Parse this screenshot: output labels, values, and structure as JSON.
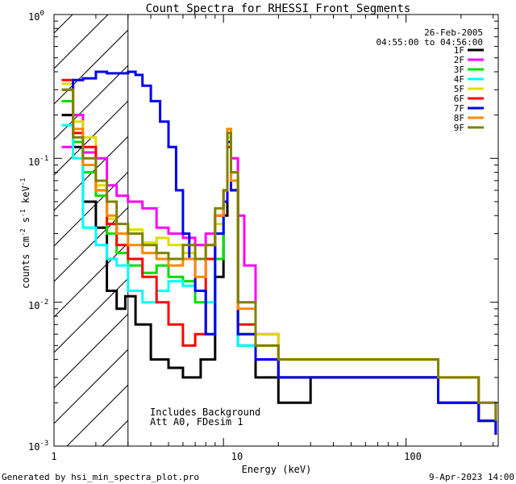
{
  "chart_data": {
    "type": "line",
    "title": "Count Spectra for RHESSI Front Segments",
    "xlabel": "Energy (keV)",
    "ylabel_main": "counts cm",
    "ylabel_exp1": "-2",
    "ylabel_mid": " s",
    "ylabel_exp2": "-1",
    "ylabel_end": " keV",
    "ylabel_exp3": "-1",
    "xscale": "log",
    "yscale": "log",
    "xlim": [
      1.18,
      320
    ],
    "ylim": [
      0.001,
      1.0
    ],
    "x_ticks": [
      {
        "value": 1,
        "label": "1"
      },
      {
        "value": 10,
        "label": "10"
      },
      {
        "value": 100,
        "label": "100"
      }
    ],
    "y_ticks": [
      {
        "value": 1,
        "base": "10",
        "exp": "0"
      },
      {
        "value": 0.1,
        "base": "10",
        "exp": "-1"
      },
      {
        "value": 0.01,
        "base": "10",
        "exp": "-2"
      },
      {
        "value": 0.001,
        "base": "10",
        "exp": "-3"
      }
    ],
    "date": "26-Feb-2005",
    "time_range": "04:55:00 to 04:56:00",
    "note_line1": "Includes Background",
    "note_line2": "Att A0, FDesim 1",
    "hatch_region_keV": [
      1.18,
      3.0
    ],
    "legend_position": "top-right",
    "series": [
      {
        "name": "1F",
        "color": "#000000",
        "points": [
          [
            1.3,
            0.2
          ],
          [
            1.5,
            0.12
          ],
          [
            1.7,
            0.05
          ],
          [
            2.0,
            0.033
          ],
          [
            2.3,
            0.012
          ],
          [
            2.6,
            0.009
          ],
          [
            2.9,
            0.011
          ],
          [
            3.3,
            0.007
          ],
          [
            4,
            0.004
          ],
          [
            5,
            0.0035
          ],
          [
            6,
            0.003
          ],
          [
            7.5,
            0.004
          ],
          [
            9,
            0.015
          ],
          [
            10,
            0.04
          ],
          [
            10.5,
            0.13
          ],
          [
            11,
            0.06
          ],
          [
            12,
            0.005
          ],
          [
            15,
            0.003
          ],
          [
            20,
            0.002
          ],
          [
            30,
            0.003
          ],
          [
            50,
            0.003
          ],
          [
            80,
            0.003
          ],
          [
            150,
            0.002
          ],
          [
            250,
            0.0015
          ],
          [
            310,
            0.0012
          ]
        ]
      },
      {
        "name": "2F",
        "color": "#ff00ff",
        "points": [
          [
            1.3,
            0.12
          ],
          [
            1.5,
            0.2
          ],
          [
            1.7,
            0.11
          ],
          [
            2.0,
            0.1
          ],
          [
            2.3,
            0.065
          ],
          [
            2.6,
            0.055
          ],
          [
            3.0,
            0.05
          ],
          [
            3.6,
            0.045
          ],
          [
            4.3,
            0.033
          ],
          [
            5,
            0.03
          ],
          [
            6,
            0.028
          ],
          [
            7,
            0.025
          ],
          [
            8,
            0.03
          ],
          [
            9,
            0.04
          ],
          [
            10,
            0.06
          ],
          [
            10.5,
            0.14
          ],
          [
            11,
            0.1
          ],
          [
            12,
            0.04
          ],
          [
            13,
            0.018
          ],
          [
            15,
            0.006
          ],
          [
            20,
            0.003
          ],
          [
            30,
            0.003
          ],
          [
            50,
            0.003
          ],
          [
            80,
            0.003
          ],
          [
            150,
            0.002
          ],
          [
            250,
            0.0015
          ],
          [
            310,
            0.0012
          ]
        ]
      },
      {
        "name": "3F",
        "color": "#00dd00",
        "points": [
          [
            1.3,
            0.25
          ],
          [
            1.5,
            0.13
          ],
          [
            1.7,
            0.08
          ],
          [
            2.0,
            0.055
          ],
          [
            2.3,
            0.03
          ],
          [
            2.6,
            0.022
          ],
          [
            3.0,
            0.018
          ],
          [
            3.6,
            0.016
          ],
          [
            4.3,
            0.018
          ],
          [
            5,
            0.015
          ],
          [
            6,
            0.014
          ],
          [
            7,
            0.01
          ],
          [
            8,
            0.006
          ],
          [
            9,
            0.02
          ],
          [
            10,
            0.05
          ],
          [
            10.5,
            0.15
          ],
          [
            11,
            0.07
          ],
          [
            12,
            0.006
          ],
          [
            15,
            0.004
          ],
          [
            20,
            0.003
          ],
          [
            30,
            0.003
          ],
          [
            50,
            0.003
          ],
          [
            80,
            0.003
          ],
          [
            150,
            0.002
          ],
          [
            250,
            0.0015
          ],
          [
            310,
            0.0012
          ]
        ]
      },
      {
        "name": "4F",
        "color": "#00ffff",
        "points": [
          [
            1.3,
            0.17
          ],
          [
            1.5,
            0.1
          ],
          [
            1.7,
            0.033
          ],
          [
            2.0,
            0.025
          ],
          [
            2.3,
            0.02
          ],
          [
            2.6,
            0.018
          ],
          [
            3.0,
            0.012
          ],
          [
            3.6,
            0.01
          ],
          [
            4.3,
            0.012
          ],
          [
            5,
            0.014
          ],
          [
            6,
            0.013
          ],
          [
            7,
            0.012
          ],
          [
            8,
            0.01
          ],
          [
            9,
            0.03
          ],
          [
            10,
            0.05
          ],
          [
            10.5,
            0.12
          ],
          [
            11,
            0.06
          ],
          [
            12,
            0.005
          ],
          [
            15,
            0.004
          ],
          [
            20,
            0.003
          ],
          [
            30,
            0.003
          ],
          [
            50,
            0.003
          ],
          [
            80,
            0.003
          ],
          [
            150,
            0.002
          ],
          [
            250,
            0.0015
          ],
          [
            310,
            0.0012
          ]
        ]
      },
      {
        "name": "5F",
        "color": "#dddd00",
        "points": [
          [
            1.3,
            0.33
          ],
          [
            1.5,
            0.18
          ],
          [
            1.7,
            0.14
          ],
          [
            2.0,
            0.065
          ],
          [
            2.3,
            0.038
          ],
          [
            2.6,
            0.03
          ],
          [
            3.0,
            0.032
          ],
          [
            3.6,
            0.026
          ],
          [
            4.3,
            0.028
          ],
          [
            5,
            0.025
          ],
          [
            6,
            0.022
          ],
          [
            7,
            0.02
          ],
          [
            8,
            0.025
          ],
          [
            9,
            0.035
          ],
          [
            10,
            0.05
          ],
          [
            10.5,
            0.14
          ],
          [
            11,
            0.08
          ],
          [
            12,
            0.01
          ],
          [
            15,
            0.006
          ],
          [
            20,
            0.004
          ],
          [
            30,
            0.004
          ],
          [
            50,
            0.004
          ],
          [
            80,
            0.004
          ],
          [
            150,
            0.003
          ],
          [
            250,
            0.002
          ],
          [
            310,
            0.0015
          ]
        ]
      },
      {
        "name": "6F",
        "color": "#ff0000",
        "points": [
          [
            1.3,
            0.35
          ],
          [
            1.5,
            0.15
          ],
          [
            1.7,
            0.12
          ],
          [
            2.0,
            0.06
          ],
          [
            2.3,
            0.035
          ],
          [
            2.6,
            0.025
          ],
          [
            3.0,
            0.02
          ],
          [
            3.6,
            0.015
          ],
          [
            4.3,
            0.01
          ],
          [
            5,
            0.007
          ],
          [
            6,
            0.005
          ],
          [
            7,
            0.006
          ],
          [
            8,
            0.02
          ],
          [
            9,
            0.04
          ],
          [
            10,
            0.05
          ],
          [
            10.5,
            0.12
          ],
          [
            11,
            0.06
          ],
          [
            12,
            0.007
          ],
          [
            15,
            0.004
          ],
          [
            20,
            0.003
          ],
          [
            30,
            0.003
          ],
          [
            50,
            0.003
          ],
          [
            80,
            0.003
          ],
          [
            150,
            0.002
          ],
          [
            250,
            0.0015
          ],
          [
            310,
            0.0012
          ]
        ]
      },
      {
        "name": "7F",
        "color": "#0000ee",
        "points": [
          [
            1.3,
            0.3
          ],
          [
            1.5,
            0.35
          ],
          [
            1.7,
            0.36
          ],
          [
            2.0,
            0.4
          ],
          [
            2.3,
            0.39
          ],
          [
            2.6,
            0.39
          ],
          [
            3.0,
            0.4
          ],
          [
            3.3,
            0.38
          ],
          [
            3.6,
            0.32
          ],
          [
            4.0,
            0.25
          ],
          [
            4.5,
            0.18
          ],
          [
            5,
            0.12
          ],
          [
            5.5,
            0.06
          ],
          [
            6,
            0.03
          ],
          [
            6.5,
            0.02
          ],
          [
            7,
            0.012
          ],
          [
            8,
            0.006
          ],
          [
            9,
            0.03
          ],
          [
            10,
            0.05
          ],
          [
            10.5,
            0.13
          ],
          [
            11,
            0.06
          ],
          [
            12,
            0.006
          ],
          [
            15,
            0.004
          ],
          [
            20,
            0.003
          ],
          [
            30,
            0.003
          ],
          [
            50,
            0.003
          ],
          [
            80,
            0.003
          ],
          [
            150,
            0.002
          ],
          [
            250,
            0.0015
          ],
          [
            310,
            0.0012
          ]
        ]
      },
      {
        "name": "8F",
        "color": "#ff8800",
        "points": [
          [
            1.3,
            0.3
          ],
          [
            1.5,
            0.16
          ],
          [
            1.7,
            0.09
          ],
          [
            2.0,
            0.06
          ],
          [
            2.3,
            0.04
          ],
          [
            2.6,
            0.03
          ],
          [
            3.0,
            0.025
          ],
          [
            3.6,
            0.022
          ],
          [
            4.3,
            0.02
          ],
          [
            5,
            0.018
          ],
          [
            6,
            0.02
          ],
          [
            7,
            0.015
          ],
          [
            8,
            0.025
          ],
          [
            9,
            0.04
          ],
          [
            10,
            0.06
          ],
          [
            10.5,
            0.16
          ],
          [
            11,
            0.07
          ],
          [
            12,
            0.009
          ],
          [
            15,
            0.005
          ],
          [
            20,
            0.004
          ],
          [
            30,
            0.004
          ],
          [
            50,
            0.004
          ],
          [
            80,
            0.004
          ],
          [
            150,
            0.003
          ],
          [
            250,
            0.002
          ],
          [
            310,
            0.0015
          ]
        ]
      },
      {
        "name": "9F",
        "color": "#808000",
        "points": [
          [
            1.3,
            0.3
          ],
          [
            1.5,
            0.14
          ],
          [
            1.7,
            0.1
          ],
          [
            2.0,
            0.07
          ],
          [
            2.3,
            0.05
          ],
          [
            2.6,
            0.035
          ],
          [
            3.0,
            0.03
          ],
          [
            3.6,
            0.025
          ],
          [
            4.3,
            0.022
          ],
          [
            5,
            0.02
          ],
          [
            6,
            0.025
          ],
          [
            7,
            0.02
          ],
          [
            8,
            0.025
          ],
          [
            9,
            0.045
          ],
          [
            10,
            0.06
          ],
          [
            10.5,
            0.15
          ],
          [
            11,
            0.08
          ],
          [
            12,
            0.01
          ],
          [
            15,
            0.005
          ],
          [
            20,
            0.004
          ],
          [
            30,
            0.004
          ],
          [
            50,
            0.004
          ],
          [
            80,
            0.004
          ],
          [
            150,
            0.003
          ],
          [
            250,
            0.002
          ],
          [
            310,
            0.0015
          ]
        ]
      }
    ]
  },
  "footer": {
    "generated_by": "Generated by hsi_min_spectra_plot.pro",
    "timestamp": "9-Apr-2023 14:00"
  }
}
